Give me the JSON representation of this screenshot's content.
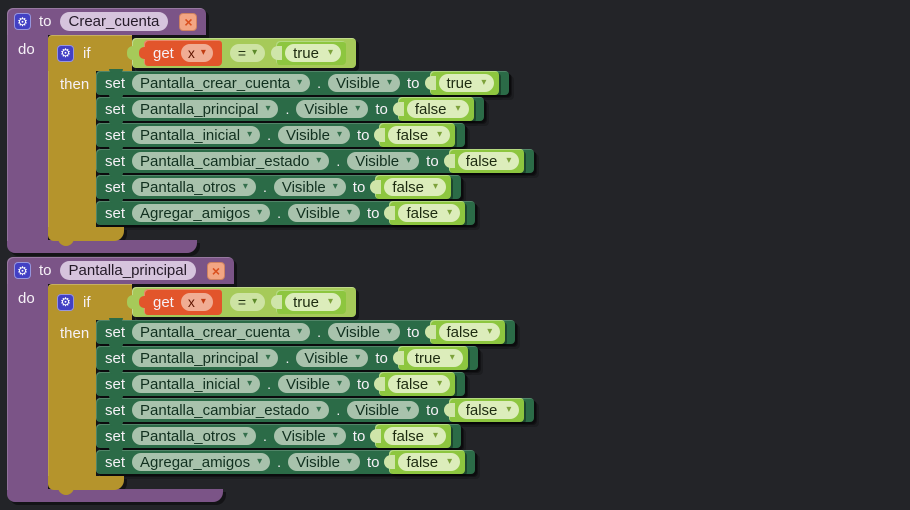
{
  "labels": {
    "to": "to",
    "do": "do",
    "if": "if",
    "then": "then",
    "set": "set",
    "dot": ".",
    "to_value": "to",
    "get": "get"
  },
  "icons": {
    "gear": "⚙",
    "close": "×",
    "dropdown": "▾"
  },
  "colors": {
    "background": "#232428",
    "purple": "#7b5487",
    "purple-light": "#d6c4dd",
    "gold": "#b5942c",
    "green-dark": "#2b6b47",
    "green-sage": "#a8c2ac",
    "green-block": "#8dc63f",
    "green-pale": "#dcedbb",
    "green-eq": "#a6ca59",
    "orange": "#e2552b",
    "salmon": "#f0ad94",
    "blue-gear": "#4240c4",
    "salmon-close": "#f2a583"
  },
  "procedures": [
    {
      "name": "Crear_cuenta",
      "condition": {
        "var": "x",
        "op": "=",
        "value": "true"
      },
      "sets": [
        {
          "component": "Pantalla_crear_cuenta",
          "prop": "Visible",
          "value": "true"
        },
        {
          "component": "Pantalla_principal",
          "prop": "Visible",
          "value": "false"
        },
        {
          "component": "Pantalla_inicial",
          "prop": "Visible",
          "value": "false"
        },
        {
          "component": "Pantalla_cambiar_estado",
          "prop": "Visible",
          "value": "false"
        },
        {
          "component": "Pantalla_otros",
          "prop": "Visible",
          "value": "false"
        },
        {
          "component": "Agregar_amigos",
          "prop": "Visible",
          "value": "false"
        }
      ]
    },
    {
      "name": "Pantalla_principal",
      "condition": {
        "var": "x",
        "op": "=",
        "value": "true"
      },
      "sets": [
        {
          "component": "Pantalla_crear_cuenta",
          "prop": "Visible",
          "value": "false"
        },
        {
          "component": "Pantalla_principal",
          "prop": "Visible",
          "value": "true"
        },
        {
          "component": "Pantalla_inicial",
          "prop": "Visible",
          "value": "false"
        },
        {
          "component": "Pantalla_cambiar_estado",
          "prop": "Visible",
          "value": "false"
        },
        {
          "component": "Pantalla_otros",
          "prop": "Visible",
          "value": "false"
        },
        {
          "component": "Agregar_amigos",
          "prop": "Visible",
          "value": "false"
        }
      ]
    }
  ]
}
